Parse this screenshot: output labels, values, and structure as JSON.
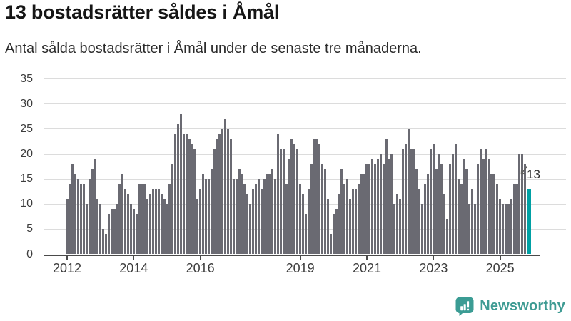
{
  "title": "13 bostadsrätter såldes i Åmål",
  "subtitle": "Antal sålda bostadsrätter i Åmål under de senaste tre månaderna.",
  "logo": {
    "text": "Newsworthy"
  },
  "colors": {
    "bar": "#6A6A72",
    "highlight": "#00A0A4",
    "gridline": "#DCDCDC",
    "axis": "#4A4A4A",
    "logo_teal": "#3B9C94"
  },
  "chart_data": {
    "type": "bar",
    "title": "13 bostadsrätter såldes i Åmål",
    "subtitle": "Antal sålda bostadsrätter i Åmål under de senaste tre månaderna.",
    "x_start": "2012-01",
    "x_end": "2025-11",
    "x_frequency": "monthly",
    "ylim": [
      0,
      35
    ],
    "yticks": [
      0,
      5,
      10,
      15,
      20,
      25,
      30,
      35
    ],
    "grid": "horizontal",
    "xticks": [
      {
        "label": "2012",
        "month_index": 0
      },
      {
        "label": "2014",
        "month_index": 24
      },
      {
        "label": "2016",
        "month_index": 48
      },
      {
        "label": "2019",
        "month_index": 84
      },
      {
        "label": "2021",
        "month_index": 108
      },
      {
        "label": "2023",
        "month_index": 132
      },
      {
        "label": "2025",
        "month_index": 156
      }
    ],
    "values": [
      11,
      14,
      18,
      16,
      15,
      14,
      14,
      10,
      15,
      17,
      19,
      11,
      10,
      5,
      4,
      8,
      9,
      9,
      10,
      14,
      16,
      13,
      12,
      10,
      9,
      8,
      14,
      14,
      14,
      11,
      12,
      13,
      13,
      13,
      12,
      11,
      10,
      14,
      18,
      24,
      26,
      28,
      24,
      24,
      23,
      22,
      21,
      11,
      13,
      16,
      15,
      15,
      17,
      21,
      23,
      24,
      25,
      27,
      25,
      23,
      15,
      15,
      17,
      16,
      14,
      12,
      10,
      13,
      14,
      15,
      13,
      15,
      16,
      16,
      17,
      15,
      24,
      21,
      21,
      14,
      19,
      23,
      22,
      21,
      14,
      12,
      8,
      13,
      18,
      23,
      23,
      22,
      18,
      17,
      11,
      4,
      8,
      9,
      12,
      17,
      14,
      15,
      11,
      13,
      13,
      14,
      16,
      16,
      18,
      18,
      19,
      18,
      19,
      20,
      18,
      23,
      19,
      20,
      10,
      12,
      11,
      21,
      22,
      25,
      21,
      21,
      17,
      13,
      10,
      14,
      16,
      21,
      22,
      17,
      20,
      18,
      12,
      7,
      18,
      20,
      22,
      15,
      14,
      19,
      17,
      10,
      13,
      10,
      18,
      21,
      19,
      21,
      19,
      16,
      16,
      14,
      11,
      10,
      10,
      10,
      11,
      14,
      14,
      20,
      20,
      18,
      13
    ],
    "highlight": {
      "index": 166,
      "value": 13,
      "label": "13"
    }
  }
}
